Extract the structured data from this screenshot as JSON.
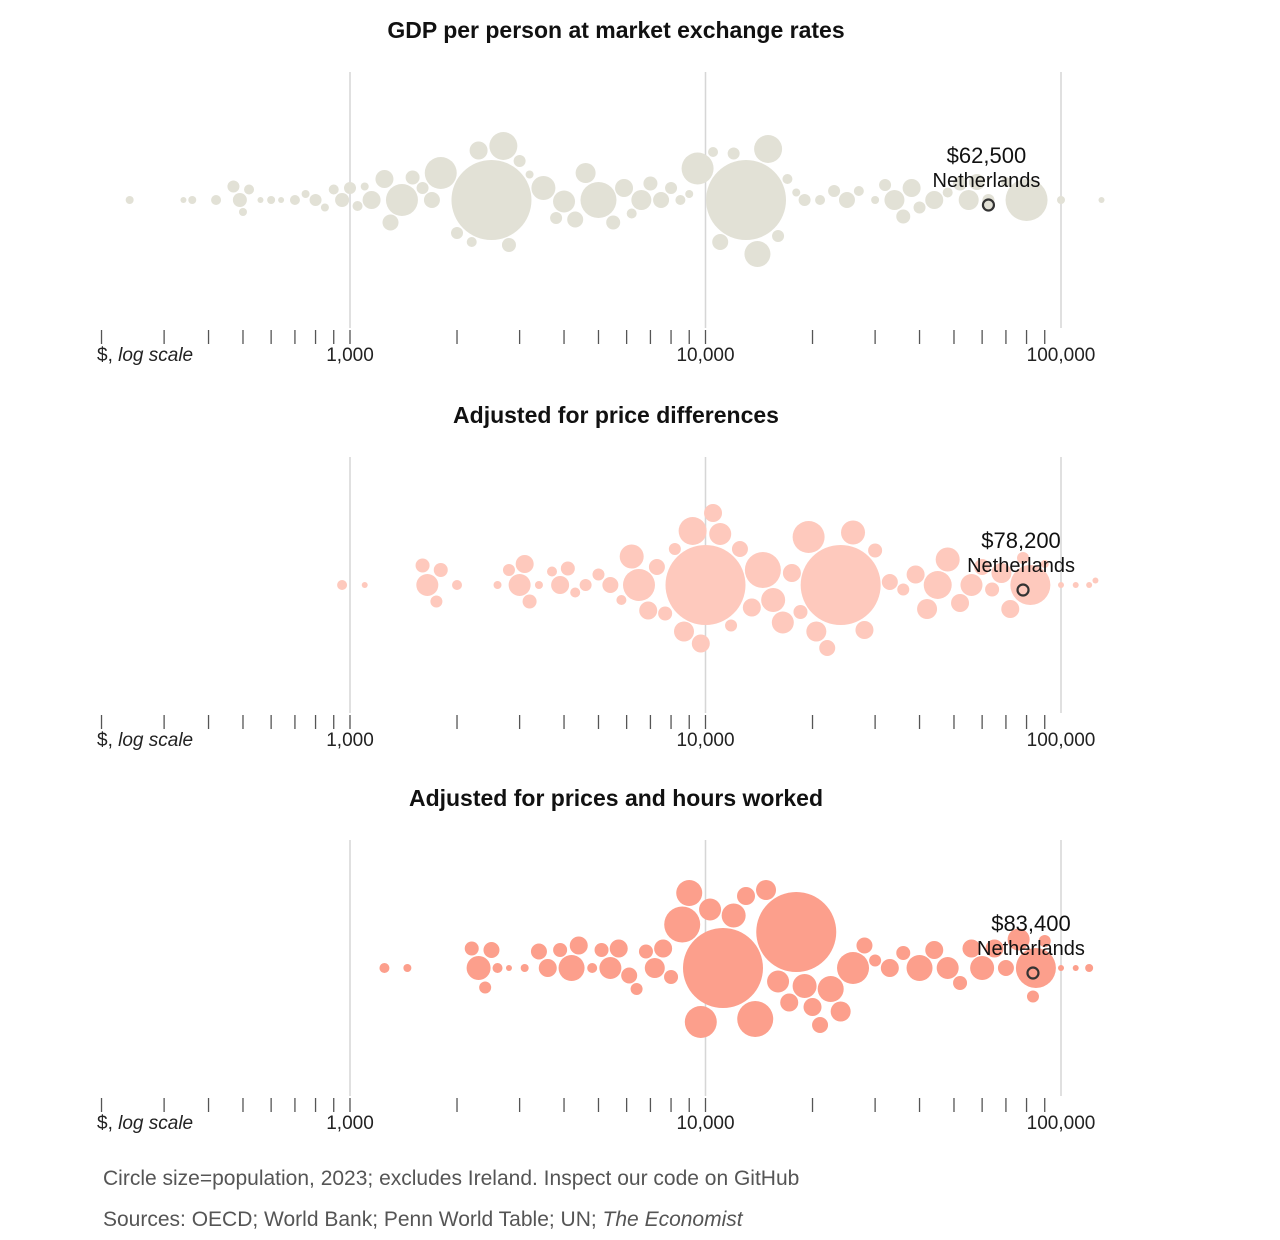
{
  "chart_data": [
    {
      "type": "scatter",
      "subtype": "beeswarm",
      "title": "GDP per person at market exchange rates",
      "axis_unit_prefix": "$,",
      "axis_unit_italic": "log scale",
      "x_scale": "log",
      "xlim": [
        200,
        130000
      ],
      "ticks": [
        1000,
        10000,
        100000
      ],
      "tick_labels": [
        "1,000",
        "10,000",
        "100,000"
      ],
      "color": "#e2e1d6",
      "highlight": {
        "label_value": "$62,500",
        "label_name": "Netherlands",
        "x": 62500
      },
      "points": [
        [
          240,
          4
        ],
        [
          340,
          3
        ],
        [
          360,
          4
        ],
        [
          420,
          5
        ],
        [
          470,
          6
        ],
        [
          490,
          7
        ],
        [
          500,
          4
        ],
        [
          520,
          5
        ],
        [
          560,
          3
        ],
        [
          600,
          4
        ],
        [
          640,
          3
        ],
        [
          700,
          5
        ],
        [
          750,
          4
        ],
        [
          800,
          6
        ],
        [
          850,
          4
        ],
        [
          900,
          5
        ],
        [
          950,
          7
        ],
        [
          1000,
          6
        ],
        [
          1050,
          5
        ],
        [
          1100,
          4
        ],
        [
          1150,
          9
        ],
        [
          1250,
          9
        ],
        [
          1300,
          8
        ],
        [
          1400,
          16
        ],
        [
          1500,
          7
        ],
        [
          1600,
          6
        ],
        [
          1700,
          8
        ],
        [
          1800,
          16
        ],
        [
          2000,
          6
        ],
        [
          2200,
          5
        ],
        [
          2300,
          9
        ],
        [
          2500,
          40
        ],
        [
          2700,
          14
        ],
        [
          2800,
          7
        ],
        [
          3000,
          6
        ],
        [
          3200,
          4
        ],
        [
          3500,
          12
        ],
        [
          3800,
          6
        ],
        [
          4000,
          11
        ],
        [
          4300,
          8
        ],
        [
          4600,
          10
        ],
        [
          5000,
          18
        ],
        [
          5500,
          7
        ],
        [
          5900,
          9
        ],
        [
          6200,
          5
        ],
        [
          6600,
          10
        ],
        [
          7000,
          7
        ],
        [
          7500,
          8
        ],
        [
          8000,
          6
        ],
        [
          8500,
          5
        ],
        [
          9000,
          4
        ],
        [
          9500,
          16
        ],
        [
          10500,
          5
        ],
        [
          11000,
          8
        ],
        [
          12000,
          6
        ],
        [
          13000,
          40
        ],
        [
          14000,
          13
        ],
        [
          15000,
          14
        ],
        [
          16000,
          6
        ],
        [
          17000,
          5
        ],
        [
          18000,
          4
        ],
        [
          19000,
          6
        ],
        [
          21000,
          5
        ],
        [
          23000,
          6
        ],
        [
          25000,
          8
        ],
        [
          27000,
          5
        ],
        [
          30000,
          4
        ],
        [
          32000,
          6
        ],
        [
          34000,
          10
        ],
        [
          36000,
          7
        ],
        [
          38000,
          9
        ],
        [
          40000,
          6
        ],
        [
          44000,
          9
        ],
        [
          48000,
          5
        ],
        [
          52000,
          7
        ],
        [
          55000,
          10
        ],
        [
          58000,
          8
        ],
        [
          62500,
          6
        ],
        [
          70000,
          5
        ],
        [
          80000,
          21
        ],
        [
          100000,
          4
        ],
        [
          130000,
          3
        ]
      ]
    },
    {
      "type": "scatter",
      "subtype": "beeswarm",
      "title": "Adjusted for price differences",
      "axis_unit_prefix": "$,",
      "axis_unit_italic": "log scale",
      "x_scale": "log",
      "xlim": [
        200,
        130000
      ],
      "ticks": [
        1000,
        10000,
        100000
      ],
      "tick_labels": [
        "1,000",
        "10,000",
        "100,000"
      ],
      "color": "#fec9bd",
      "highlight": {
        "label_value": "$78,200",
        "label_name": "Netherlands",
        "x": 78200
      },
      "points": [
        [
          950,
          5
        ],
        [
          1100,
          3
        ],
        [
          1600,
          7
        ],
        [
          1650,
          11
        ],
        [
          1750,
          6
        ],
        [
          1800,
          7
        ],
        [
          2000,
          5
        ],
        [
          2600,
          4
        ],
        [
          2800,
          6
        ],
        [
          3000,
          11
        ],
        [
          3100,
          9
        ],
        [
          3200,
          7
        ],
        [
          3400,
          4
        ],
        [
          3700,
          5
        ],
        [
          3900,
          9
        ],
        [
          4100,
          7
        ],
        [
          4300,
          5
        ],
        [
          4600,
          6
        ],
        [
          5000,
          6
        ],
        [
          5400,
          8
        ],
        [
          5800,
          5
        ],
        [
          6200,
          12
        ],
        [
          6500,
          16
        ],
        [
          6900,
          9
        ],
        [
          7300,
          8
        ],
        [
          7700,
          7
        ],
        [
          8200,
          6
        ],
        [
          8700,
          10
        ],
        [
          9200,
          14
        ],
        [
          9700,
          9
        ],
        [
          10000,
          40
        ],
        [
          10500,
          9
        ],
        [
          11000,
          11
        ],
        [
          11800,
          6
        ],
        [
          12500,
          8
        ],
        [
          13500,
          9
        ],
        [
          14500,
          18
        ],
        [
          15500,
          12
        ],
        [
          16500,
          11
        ],
        [
          17500,
          9
        ],
        [
          18500,
          7
        ],
        [
          19500,
          16
        ],
        [
          20500,
          10
        ],
        [
          22000,
          8
        ],
        [
          24000,
          40
        ],
        [
          26000,
          12
        ],
        [
          28000,
          9
        ],
        [
          30000,
          7
        ],
        [
          33000,
          8
        ],
        [
          36000,
          6
        ],
        [
          39000,
          9
        ],
        [
          42000,
          10
        ],
        [
          45000,
          14
        ],
        [
          48000,
          12
        ],
        [
          52000,
          9
        ],
        [
          56000,
          11
        ],
        [
          60000,
          8
        ],
        [
          64000,
          7
        ],
        [
          68000,
          10
        ],
        [
          72000,
          9
        ],
        [
          78200,
          6
        ],
        [
          82000,
          20
        ],
        [
          90000,
          4
        ],
        [
          100000,
          3
        ],
        [
          110000,
          3
        ],
        [
          120000,
          3
        ],
        [
          125000,
          3
        ]
      ]
    },
    {
      "type": "scatter",
      "subtype": "beeswarm",
      "title": "Adjusted for prices and hours worked",
      "axis_unit_prefix": "$,",
      "axis_unit_italic": "log scale",
      "x_scale": "log",
      "xlim": [
        200,
        130000
      ],
      "ticks": [
        1000,
        10000,
        100000
      ],
      "tick_labels": [
        "1,000",
        "10,000",
        "100,000"
      ],
      "color": "#fc9f8c",
      "highlight": {
        "label_value": "$83,400",
        "label_name": "Netherlands",
        "x": 83400
      },
      "points": [
        [
          1250,
          5
        ],
        [
          1450,
          4
        ],
        [
          2200,
          7
        ],
        [
          2300,
          12
        ],
        [
          2400,
          6
        ],
        [
          2500,
          8
        ],
        [
          2600,
          5
        ],
        [
          2800,
          3
        ],
        [
          3100,
          4
        ],
        [
          3400,
          8
        ],
        [
          3600,
          9
        ],
        [
          3900,
          7
        ],
        [
          4200,
          13
        ],
        [
          4400,
          9
        ],
        [
          4800,
          5
        ],
        [
          5100,
          7
        ],
        [
          5400,
          11
        ],
        [
          5700,
          9
        ],
        [
          6100,
          8
        ],
        [
          6400,
          6
        ],
        [
          6800,
          7
        ],
        [
          7200,
          10
        ],
        [
          7600,
          9
        ],
        [
          8000,
          7
        ],
        [
          8600,
          18
        ],
        [
          9000,
          13
        ],
        [
          9700,
          16
        ],
        [
          10300,
          11
        ],
        [
          11200,
          40
        ],
        [
          12000,
          12
        ],
        [
          13000,
          9
        ],
        [
          13800,
          18
        ],
        [
          14800,
          10
        ],
        [
          16000,
          11
        ],
        [
          17200,
          9
        ],
        [
          18000,
          40
        ],
        [
          19000,
          12
        ],
        [
          20000,
          9
        ],
        [
          21000,
          8
        ],
        [
          22500,
          13
        ],
        [
          24000,
          10
        ],
        [
          26000,
          16
        ],
        [
          28000,
          8
        ],
        [
          30000,
          6
        ],
        [
          33000,
          9
        ],
        [
          36000,
          7
        ],
        [
          40000,
          13
        ],
        [
          44000,
          9
        ],
        [
          48000,
          11
        ],
        [
          52000,
          7
        ],
        [
          56000,
          9
        ],
        [
          60000,
          12
        ],
        [
          65000,
          9
        ],
        [
          70000,
          8
        ],
        [
          76000,
          11
        ],
        [
          83400,
          6
        ],
        [
          85000,
          20
        ],
        [
          90000,
          6
        ],
        [
          100000,
          3
        ],
        [
          110000,
          3
        ],
        [
          120000,
          4
        ]
      ]
    }
  ],
  "notes": {
    "line1": "Circle size=population, 2023; excludes Ireland. Inspect our code on GitHub",
    "sources_prefix": "Sources: OECD; World Bank; Penn World Table; UN; ",
    "sources_italic": "The Economist"
  },
  "colors": {
    "gridline": "#d6d6d6",
    "tick": "#555555",
    "highlight_stroke": "#333333"
  }
}
